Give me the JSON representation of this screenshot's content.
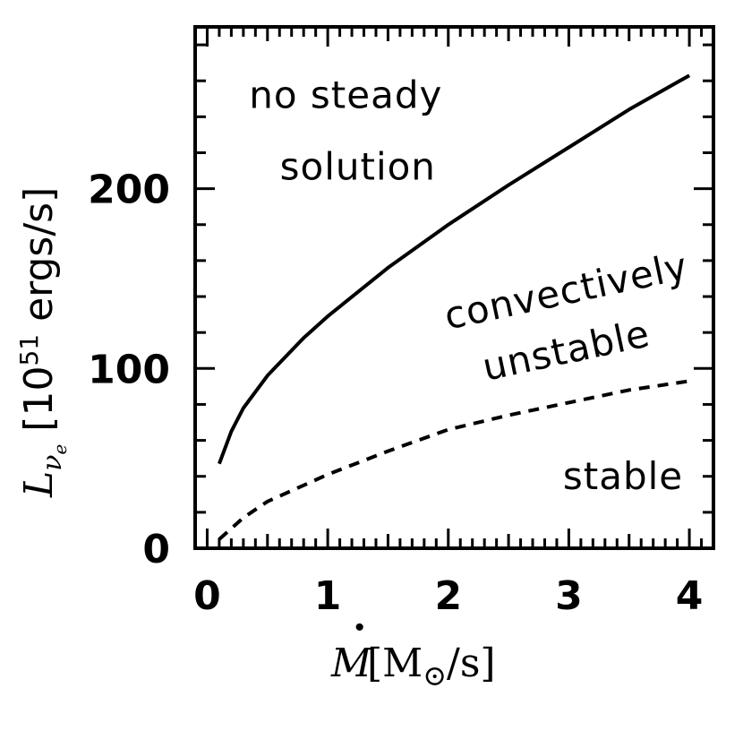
{
  "chart_data": {
    "type": "line",
    "xlabel": {
      "main": "M",
      "open": "[M",
      "sub": "⊙",
      "close": "/s]"
    },
    "ylabel": {
      "main": "L",
      "sub": "ν",
      "subsub": "e",
      "open": "[10",
      "sup": "51",
      "close": " ergs/s]"
    },
    "xlim": [
      -0.1,
      4.2
    ],
    "ylim": [
      0,
      290
    ],
    "x_ticks": [
      "0",
      "1",
      "2",
      "3",
      "4"
    ],
    "y_ticks": [
      "0",
      "100",
      "200"
    ],
    "grid": false,
    "series": [
      {
        "style": "solid",
        "x": [
          0.1,
          0.2,
          0.3,
          0.5,
          0.8,
          1.0,
          1.5,
          2.0,
          2.5,
          3.0,
          3.5,
          4.0
        ],
        "y": [
          47,
          65,
          78,
          96,
          117,
          129,
          156,
          180,
          202,
          223,
          244,
          263
        ]
      },
      {
        "style": "dashed",
        "x": [
          0.1,
          0.3,
          0.5,
          1.0,
          1.5,
          2.0,
          2.5,
          3.0,
          3.5,
          4.0
        ],
        "y": [
          5,
          17,
          26,
          41,
          54,
          66,
          74,
          81,
          88,
          93
        ]
      }
    ],
    "annotations": [
      {
        "text": "no steady",
        "x": 1.15,
        "y": 245,
        "rotate": 0
      },
      {
        "text": "solution",
        "x": 1.25,
        "y": 205,
        "rotate": 0
      },
      {
        "text": "convectively",
        "x": 3.0,
        "y": 136,
        "rotate": -12
      },
      {
        "text": "unstable",
        "x": 3.0,
        "y": 103,
        "rotate": -12
      },
      {
        "text": "stable",
        "x": 3.45,
        "y": 33,
        "rotate": 0
      }
    ]
  }
}
